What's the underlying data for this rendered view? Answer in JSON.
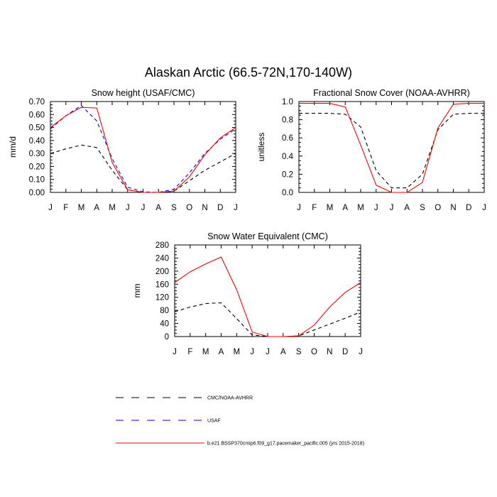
{
  "figure_title": "Alaskan Arctic (66.5-72N,170-140W)",
  "legend": [
    {
      "label": "CMC/NOAA-AVHRR",
      "color": "#000000",
      "dash": "dashed"
    },
    {
      "label": "USAF",
      "color": "#0000ff",
      "dash": "dashed"
    },
    {
      "label": "b.e21.BSSP370cmip6.f09_g17.pacemaker_pacific.005 (yrs 2015-2018)",
      "color": "#ff0000",
      "dash": "solid"
    }
  ],
  "chart_data": [
    {
      "id": "snow-height",
      "type": "line",
      "title": "Snow height (USAF/CMC)",
      "xlabel": "",
      "ylabel": "mm/d",
      "x": [
        "J",
        "F",
        "M",
        "A",
        "M",
        "J",
        "J",
        "A",
        "S",
        "O",
        "N",
        "D",
        "J"
      ],
      "ylim": [
        0,
        0.7
      ],
      "yticks": [
        0,
        0.1,
        0.2,
        0.3,
        0.4,
        0.5,
        0.6,
        0.7
      ],
      "ytick_labels": [
        "0.00",
        "0.10",
        "0.20",
        "0.30",
        "0.40",
        "0.50",
        "0.60",
        "0.70"
      ],
      "series": [
        {
          "name": "CMC/NOAA-AVHRR",
          "color": "#000000",
          "dash": "dashed",
          "values": [
            0.3,
            0.335,
            0.365,
            0.345,
            0.17,
            0.02,
            0.0,
            0.0,
            0.01,
            0.09,
            0.17,
            0.235,
            0.3
          ]
        },
        {
          "name": "USAF",
          "color": "#0000ff",
          "dash": "dashed",
          "values": [
            0.49,
            0.59,
            0.67,
            0.55,
            0.26,
            0.04,
            0.005,
            0.0,
            0.025,
            0.15,
            0.3,
            0.41,
            0.49
          ]
        },
        {
          "name": "b.e21.BSSP370cmip6.f09_g17.pacemaker_pacific.005 (yrs 2015-2018)",
          "color": "#ff0000",
          "dash": "solid",
          "values": [
            0.5,
            0.59,
            0.655,
            0.65,
            0.23,
            0.02,
            0.0,
            0.0,
            0.01,
            0.12,
            0.29,
            0.42,
            0.5
          ]
        }
      ]
    },
    {
      "id": "fractional-snow-cover",
      "type": "line",
      "title": "Fractional Snow Cover (NOAA-AVHRR)",
      "xlabel": "",
      "ylabel": "unitless",
      "x": [
        "J",
        "F",
        "M",
        "A",
        "M",
        "J",
        "J",
        "A",
        "S",
        "O",
        "N",
        "D",
        "J"
      ],
      "ylim": [
        0,
        1.0
      ],
      "yticks": [
        0,
        0.2,
        0.4,
        0.6,
        0.8,
        1.0
      ],
      "ytick_labels": [
        "0.0",
        "0.2",
        "0.4",
        "0.6",
        "0.8",
        "1.0"
      ],
      "series": [
        {
          "name": "CMC/NOAA-AVHRR",
          "color": "#000000",
          "dash": "dashed",
          "values": [
            0.87,
            0.87,
            0.87,
            0.86,
            0.72,
            0.24,
            0.05,
            0.05,
            0.2,
            0.69,
            0.86,
            0.87,
            0.87
          ]
        },
        {
          "name": "b.e21.BSSP370cmip6.f09_g17.pacemaker_pacific.005 (yrs 2015-2018)",
          "color": "#ff0000",
          "dash": "solid",
          "values": [
            0.98,
            0.98,
            0.98,
            0.94,
            0.52,
            0.08,
            0.0,
            0.0,
            0.11,
            0.71,
            0.97,
            0.98,
            0.98
          ]
        }
      ]
    },
    {
      "id": "snow-water-equivalent",
      "type": "line",
      "title": "Snow Water Equivalent (CMC)",
      "xlabel": "",
      "ylabel": "mm",
      "x": [
        "J",
        "F",
        "M",
        "A",
        "M",
        "J",
        "J",
        "A",
        "S",
        "O",
        "N",
        "D",
        "J"
      ],
      "ylim": [
        0,
        280
      ],
      "yticks": [
        0,
        40,
        80,
        120,
        160,
        200,
        240,
        280
      ],
      "ytick_labels": [
        "0",
        "40",
        "80",
        "120",
        "160",
        "200",
        "240",
        "280"
      ],
      "series": [
        {
          "name": "CMC/NOAA-AVHRR",
          "color": "#000000",
          "dash": "dashed",
          "values": [
            76,
            90,
            101,
            103,
            55,
            5,
            0,
            0,
            2,
            20,
            38,
            56,
            75
          ]
        },
        {
          "name": "b.e21.BSSP370cmip6.f09_g17.pacemaker_pacific.005 (yrs 2015-2018)",
          "color": "#ff0000",
          "dash": "solid",
          "values": [
            165,
            198,
            222,
            243,
            143,
            14,
            0,
            0,
            2,
            35,
            90,
            135,
            165
          ]
        }
      ]
    }
  ]
}
